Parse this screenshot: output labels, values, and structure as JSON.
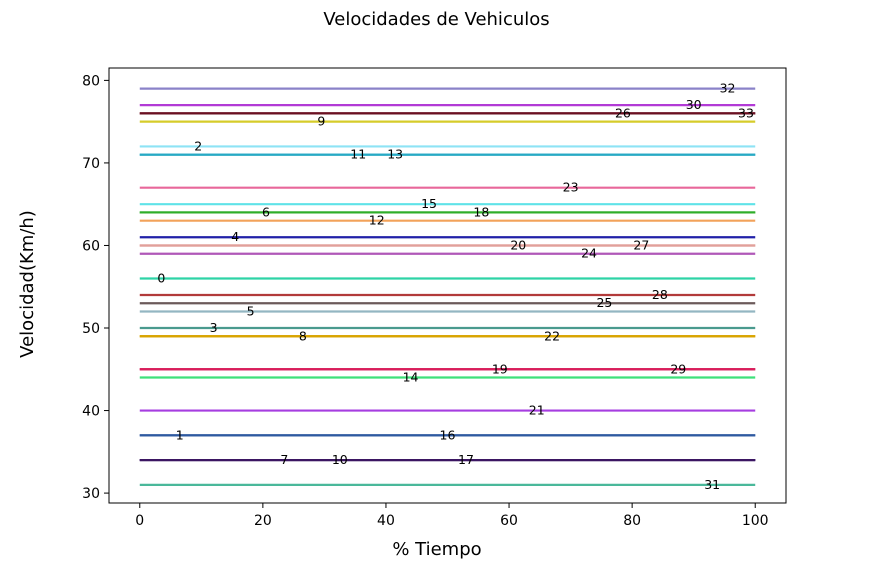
{
  "chart_data": {
    "type": "line",
    "title": "Velocidades de Vehiculos",
    "xlabel": "% Tiempo",
    "ylabel": "Velocidad(Km/h)",
    "xlim": [
      -5,
      105
    ],
    "ylim": [
      28.8,
      81.5
    ],
    "xticks": [
      0,
      20,
      40,
      60,
      80,
      100
    ],
    "yticks": [
      30,
      40,
      50,
      60,
      70,
      80
    ],
    "grid": false,
    "series": [
      {
        "name": "0",
        "speed": 56,
        "x_start": 0,
        "x_end": 100,
        "label_x": 3.5,
        "color": "#2ed3a6"
      },
      {
        "name": "1",
        "speed": 37,
        "x_start": 0,
        "x_end": 100,
        "label_x": 6.5,
        "color": "#2b4f9e"
      },
      {
        "name": "2",
        "speed": 72,
        "x_start": 0,
        "x_end": 100,
        "label_x": 9.5,
        "color": "#8ee3f5"
      },
      {
        "name": "3",
        "speed": 50,
        "x_start": 0,
        "x_end": 100,
        "label_x": 12,
        "color": "#4a9a8e"
      },
      {
        "name": "4",
        "speed": 61,
        "x_start": 0,
        "x_end": 100,
        "label_x": 15.5,
        "color": "#2020a8"
      },
      {
        "name": "5",
        "speed": 52,
        "x_start": 0,
        "x_end": 100,
        "label_x": 18,
        "color": "#93b6c2"
      },
      {
        "name": "6",
        "speed": 64,
        "x_start": 0,
        "x_end": 100,
        "label_x": 20.5,
        "color": "#22a82a"
      },
      {
        "name": "7",
        "speed": 34,
        "x_start": 0,
        "x_end": 100,
        "label_x": 23.5,
        "color": "#2b1b5e"
      },
      {
        "name": "8",
        "speed": 49,
        "x_start": 0,
        "x_end": 100,
        "label_x": 26.5,
        "color": "#d9a400"
      },
      {
        "name": "9",
        "speed": 75,
        "x_start": 0,
        "x_end": 100,
        "label_x": 29.5,
        "color": "#d6cc2a"
      },
      {
        "name": "10",
        "speed": 34,
        "x_start": 0,
        "x_end": 100,
        "label_x": 32.5,
        "color": "#4b1a6e"
      },
      {
        "name": "11",
        "speed": 71,
        "x_start": 0,
        "x_end": 100,
        "label_x": 35.5,
        "color": "#27a9c4"
      },
      {
        "name": "12",
        "speed": 63,
        "x_start": 0,
        "x_end": 100,
        "label_x": 38.5,
        "color": "#f2a25a"
      },
      {
        "name": "13",
        "speed": 71,
        "x_start": 0,
        "x_end": 100,
        "label_x": 41.5,
        "color": "#27a9c4"
      },
      {
        "name": "14",
        "speed": 44,
        "x_start": 0,
        "x_end": 100,
        "label_x": 44,
        "color": "#3ee07a"
      },
      {
        "name": "15",
        "speed": 65,
        "x_start": 0,
        "x_end": 100,
        "label_x": 47,
        "color": "#5fe3e8"
      },
      {
        "name": "16",
        "speed": 37,
        "x_start": 0,
        "x_end": 100,
        "label_x": 50,
        "color": "#2e5aa0"
      },
      {
        "name": "17",
        "speed": 34,
        "x_start": 0,
        "x_end": 100,
        "label_x": 53,
        "color": "#3b1662"
      },
      {
        "name": "18",
        "speed": 64,
        "x_start": 0,
        "x_end": 100,
        "label_x": 55.5,
        "color": "#2fae2a"
      },
      {
        "name": "19",
        "speed": 45,
        "x_start": 0,
        "x_end": 100,
        "label_x": 58.5,
        "color": "#d81e5b"
      },
      {
        "name": "20",
        "speed": 60,
        "x_start": 0,
        "x_end": 100,
        "label_x": 61.5,
        "color": "#e1a09a"
      },
      {
        "name": "21",
        "speed": 40,
        "x_start": 0,
        "x_end": 100,
        "label_x": 64.5,
        "color": "#a63de0"
      },
      {
        "name": "22",
        "speed": 49,
        "x_start": 0,
        "x_end": 100,
        "label_x": 67,
        "color": "#d9a400"
      },
      {
        "name": "23",
        "speed": 67,
        "x_start": 0,
        "x_end": 100,
        "label_x": 70,
        "color": "#e8679a"
      },
      {
        "name": "24",
        "speed": 59,
        "x_start": 0,
        "x_end": 100,
        "label_x": 73,
        "color": "#b058b8"
      },
      {
        "name": "25",
        "speed": 53,
        "x_start": 0,
        "x_end": 100,
        "label_x": 75.5,
        "color": "#6b5a5a"
      },
      {
        "name": "26",
        "speed": 76,
        "x_start": 0,
        "x_end": 100,
        "label_x": 78.5,
        "color": "#7a1b2e"
      },
      {
        "name": "27",
        "speed": 60,
        "x_start": 0,
        "x_end": 100,
        "label_x": 81.5,
        "color": "#e1a09a"
      },
      {
        "name": "28",
        "speed": 54,
        "x_start": 0,
        "x_end": 100,
        "label_x": 84.5,
        "color": "#b23a3a"
      },
      {
        "name": "29",
        "speed": 45,
        "x_start": 0,
        "x_end": 100,
        "label_x": 87.5,
        "color": "#d81e5b"
      },
      {
        "name": "30",
        "speed": 77,
        "x_start": 0,
        "x_end": 100,
        "label_x": 90,
        "color": "#b23ad6"
      },
      {
        "name": "31",
        "speed": 31,
        "x_start": 0,
        "x_end": 100,
        "label_x": 93,
        "color": "#4ab89a"
      },
      {
        "name": "32",
        "speed": 79,
        "x_start": 0,
        "x_end": 100,
        "label_x": 95.5,
        "color": "#8a82c8"
      },
      {
        "name": "33",
        "speed": 76,
        "x_start": 0,
        "x_end": 100,
        "label_x": 98.5,
        "color": "#6a1022"
      }
    ]
  }
}
